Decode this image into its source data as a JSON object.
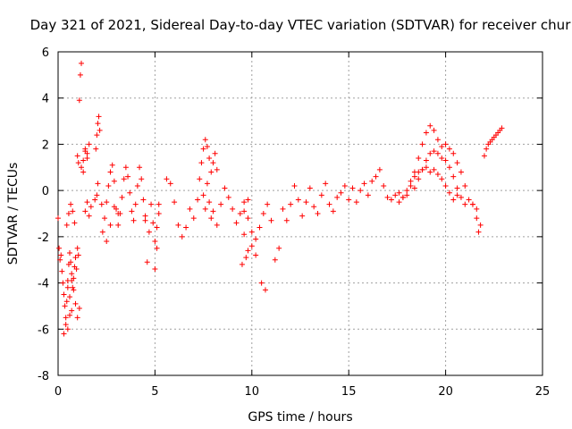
{
  "chart_data": {
    "type": "scatter",
    "title": "Day 321 of 2021, Sidereal Day-to-day VTEC variation (SDTVAR) for receiver chur",
    "xlabel": "GPS time / hours",
    "ylabel": "SDTVAR / TECUs",
    "xlim": [
      0,
      25
    ],
    "ylim": [
      -8,
      6
    ],
    "xticks": [
      0,
      5,
      10,
      15,
      20,
      25
    ],
    "yticks": [
      -8,
      -6,
      -4,
      -2,
      0,
      2,
      4,
      6
    ],
    "grid": true,
    "marker": "+",
    "colors": {
      "series": "#ff0000",
      "grid": "#a0a0a0"
    },
    "series": [
      {
        "name": "SDTVAR",
        "x": [
          0.0,
          0.05,
          0.1,
          0.15,
          0.2,
          0.25,
          0.3,
          0.35,
          0.4,
          0.45,
          0.5,
          0.55,
          0.6,
          0.65,
          0.7,
          0.75,
          0.8,
          0.85,
          0.9,
          0.95,
          1.0,
          1.05,
          0.3,
          0.4,
          0.5,
          0.6,
          0.7,
          0.45,
          0.55,
          0.65,
          0.75,
          0.85,
          0.5,
          0.6,
          0.7,
          0.8,
          0.9,
          1.0,
          1.1,
          1.0,
          1.05,
          1.1,
          1.15,
          1.2,
          1.3,
          1.4,
          1.5,
          1.6,
          1.2,
          1.3,
          1.4,
          1.5,
          1.4,
          1.5,
          1.6,
          1.7,
          1.9,
          1.95,
          2.0,
          2.05,
          2.1,
          2.0,
          2.05,
          2.15,
          2.25,
          2.4,
          2.5,
          2.6,
          2.7,
          2.8,
          2.9,
          3.0,
          3.1,
          3.2,
          3.3,
          3.4,
          3.5,
          3.6,
          3.7,
          3.8,
          3.9,
          4.0,
          4.1,
          4.2,
          4.3,
          4.4,
          4.5,
          4.6,
          4.7,
          4.8,
          4.9,
          5.0,
          5.1,
          5.2,
          5.0,
          5.1,
          2.3,
          2.5,
          2.7,
          2.9,
          3.1,
          4.5,
          5.2,
          5.6,
          5.8,
          6.0,
          6.2,
          6.4,
          6.6,
          6.8,
          7.0,
          7.2,
          7.3,
          7.4,
          7.5,
          7.6,
          7.7,
          7.8,
          7.9,
          8.0,
          8.1,
          8.2,
          7.5,
          7.6,
          7.7,
          7.8,
          7.9,
          8.0,
          8.2,
          8.4,
          8.6,
          8.8,
          9.0,
          9.2,
          9.4,
          9.6,
          9.8,
          10.0,
          10.2,
          10.4,
          10.6,
          10.8,
          11.0,
          9.6,
          9.8,
          10.0,
          10.2,
          9.6,
          9.8,
          9.5,
          9.7,
          10.5,
          10.7,
          11.2,
          11.4,
          11.6,
          11.8,
          12.0,
          12.2,
          12.4,
          12.6,
          12.8,
          13.0,
          13.2,
          13.4,
          13.6,
          13.8,
          14.0,
          14.2,
          14.4,
          14.6,
          14.8,
          15.0,
          15.2,
          15.4,
          15.6,
          15.8,
          16.0,
          16.2,
          16.4,
          16.6,
          16.8,
          17.0,
          17.2,
          17.4,
          17.6,
          17.8,
          18.0,
          18.2,
          18.4,
          18.6,
          18.8,
          19.0,
          19.2,
          19.4,
          19.6,
          19.8,
          20.0,
          20.2,
          20.4,
          20.6,
          20.8,
          21.0,
          21.2,
          21.4,
          21.6,
          18.4,
          18.6,
          18.8,
          19.0,
          19.2,
          19.4,
          19.6,
          19.8,
          20.0,
          20.2,
          20.4,
          20.6,
          20.8,
          21.0,
          17.6,
          17.8,
          18.0,
          18.2,
          18.4,
          18.6,
          18.8,
          19.0,
          19.2,
          19.4,
          19.6,
          19.8,
          20.0,
          20.2,
          20.4,
          20.6,
          21.4,
          21.6,
          21.7,
          21.8,
          22.0,
          22.1,
          22.2,
          22.3,
          22.4,
          22.5,
          22.6,
          22.7,
          22.8,
          22.9
        ],
        "y": [
          -1.2,
          -2.5,
          -3.0,
          -2.8,
          -3.5,
          -4.0,
          -4.5,
          -5.0,
          -5.5,
          -4.8,
          -3.9,
          -3.2,
          -2.7,
          -3.1,
          -3.6,
          -4.2,
          -3.8,
          -3.3,
          -2.9,
          -3.4,
          -2.5,
          -2.8,
          -6.2,
          -5.8,
          -6.0,
          -5.4,
          -5.2,
          -1.5,
          -1.0,
          -0.6,
          -0.9,
          -1.4,
          -4.2,
          -4.6,
          -3.9,
          -4.3,
          -4.9,
          -5.5,
          -5.1,
          1.5,
          1.2,
          3.9,
          5.0,
          5.5,
          1.3,
          1.8,
          1.6,
          2.0,
          1.0,
          0.8,
          1.7,
          1.4,
          -0.9,
          -0.5,
          -1.1,
          -0.7,
          -0.4,
          1.8,
          2.4,
          2.9,
          3.2,
          -0.2,
          0.3,
          2.6,
          -0.6,
          -1.2,
          -0.5,
          0.2,
          0.8,
          1.1,
          0.4,
          -0.8,
          -1.5,
          -1.0,
          -0.3,
          0.5,
          1.0,
          0.6,
          -0.1,
          -0.9,
          -1.3,
          -0.6,
          0.2,
          1.0,
          0.5,
          -0.4,
          -1.1,
          -3.1,
          -1.8,
          -0.6,
          -1.4,
          -2.2,
          -1.6,
          -1.0,
          -3.4,
          -2.5,
          -1.8,
          -2.2,
          -1.5,
          -0.7,
          -1.0,
          -1.3,
          -0.6,
          0.5,
          0.3,
          -0.5,
          -1.5,
          -2.0,
          -1.6,
          -0.8,
          -1.2,
          -0.4,
          0.5,
          1.2,
          1.8,
          2.2,
          1.9,
          1.4,
          0.8,
          1.2,
          1.6,
          0.9,
          -0.2,
          -0.8,
          0.3,
          -0.5,
          -1.2,
          -0.9,
          -1.5,
          -0.6,
          0.1,
          -0.3,
          -0.8,
          -1.4,
          -1.0,
          -0.5,
          -1.2,
          -1.8,
          -2.1,
          -1.6,
          -1.0,
          -0.6,
          -1.3,
          -0.9,
          -0.4,
          -2.4,
          -2.8,
          -1.9,
          -2.6,
          -3.2,
          -2.9,
          -4.0,
          -4.3,
          -3.0,
          -2.5,
          -0.8,
          -1.3,
          -0.6,
          0.2,
          -0.4,
          -1.1,
          -0.5,
          0.1,
          -0.7,
          -1.0,
          -0.2,
          0.3,
          -0.6,
          -0.9,
          -0.3,
          -0.1,
          0.2,
          -0.4,
          0.1,
          -0.5,
          0.0,
          0.3,
          -0.2,
          0.4,
          0.6,
          0.9,
          0.2,
          -0.3,
          -0.4,
          -0.2,
          -0.1,
          -0.3,
          -0.2,
          0.2,
          0.8,
          1.4,
          2.0,
          2.5,
          2.8,
          2.6,
          2.2,
          1.9,
          2.0,
          1.8,
          1.6,
          1.2,
          0.8,
          0.2,
          -0.4,
          -0.6,
          -0.8,
          0.1,
          0.5,
          0.9,
          1.3,
          1.6,
          1.7,
          1.6,
          1.4,
          1.3,
          1.0,
          0.6,
          0.1,
          -0.3,
          -0.6,
          -0.5,
          -0.3,
          0.0,
          0.4,
          0.6,
          0.8,
          0.9,
          1.0,
          0.8,
          0.9,
          0.7,
          0.5,
          0.2,
          -0.1,
          -0.4,
          -0.2,
          -0.6,
          -1.2,
          -1.8,
          -1.5,
          1.5,
          1.8,
          2.0,
          2.1,
          2.2,
          2.3,
          2.4,
          2.5,
          2.6,
          2.7
        ]
      }
    ]
  }
}
